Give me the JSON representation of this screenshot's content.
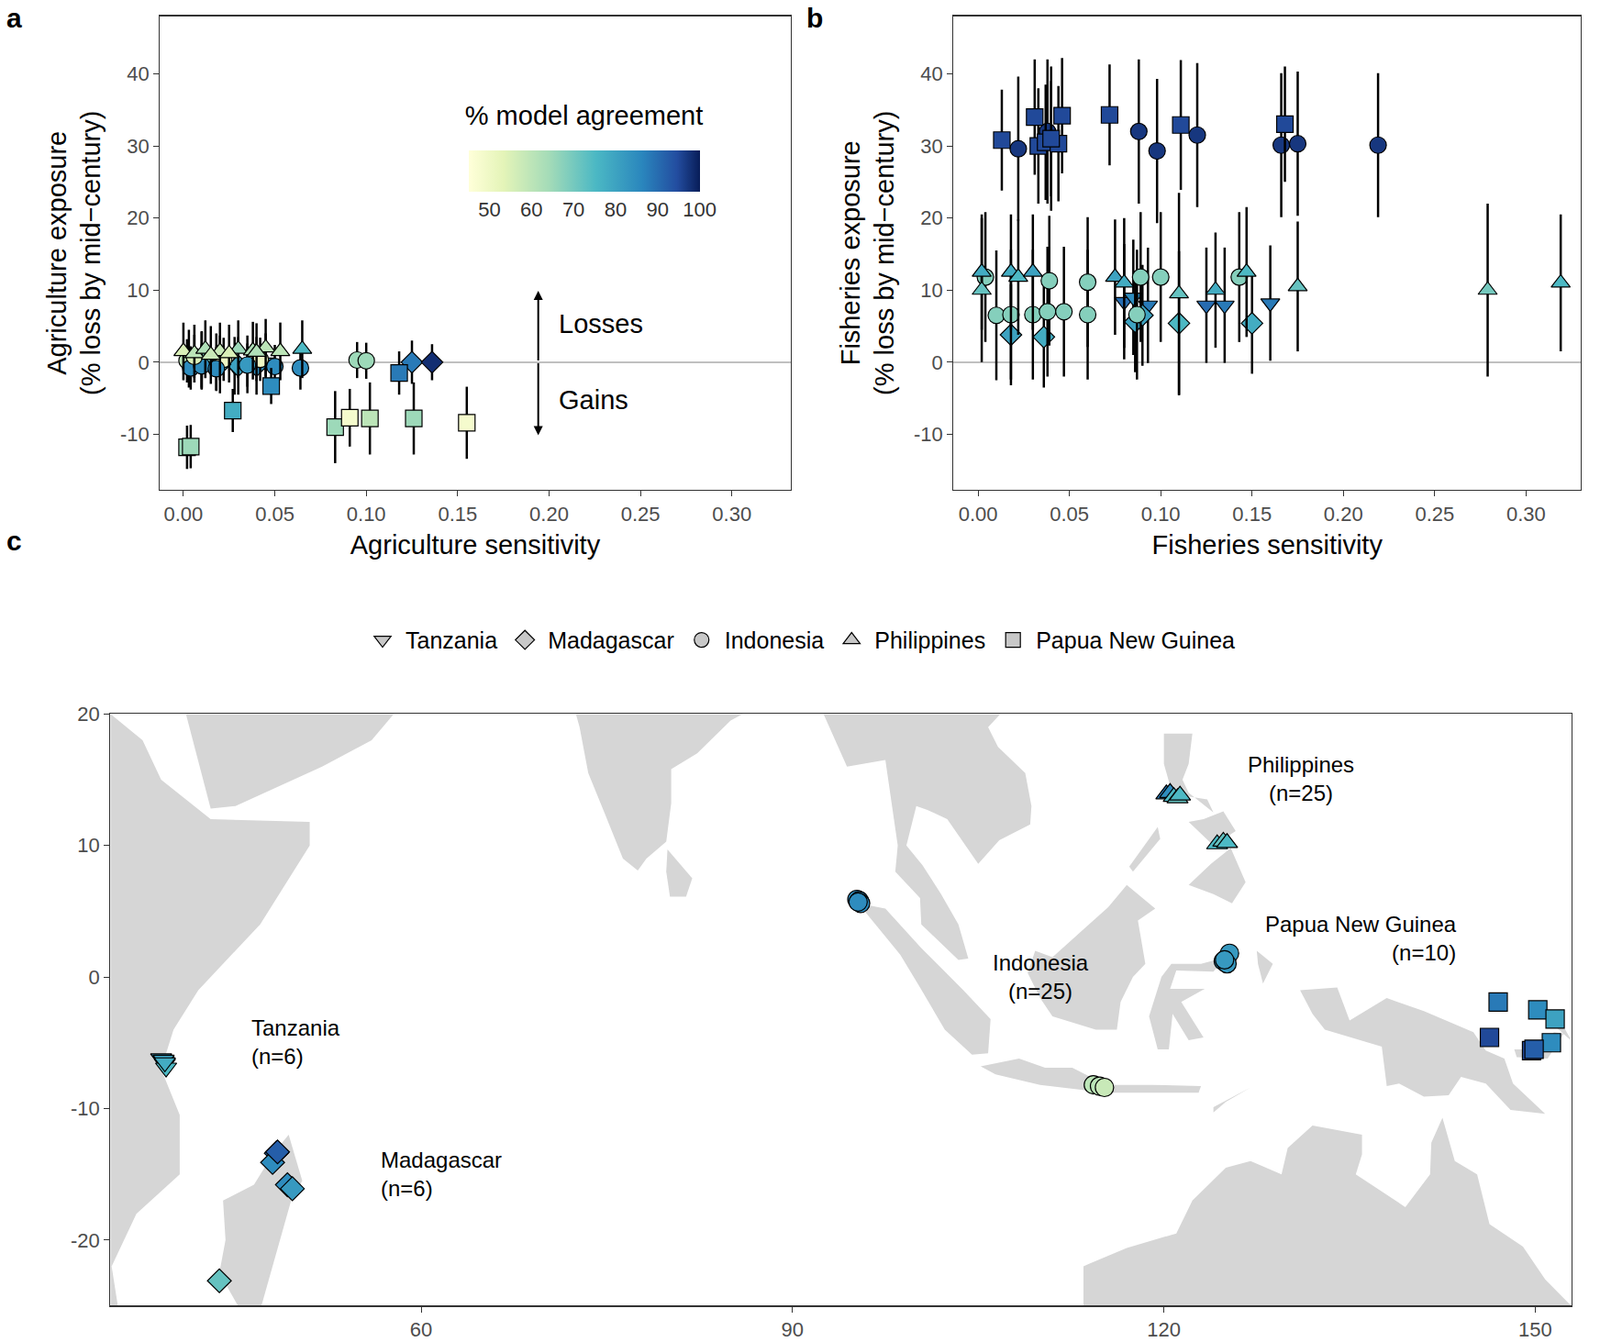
{
  "chart_data": [
    {
      "type": "scatter",
      "label": "a",
      "x_label": "Agriculture sensitivity",
      "y_label": "Agriculture exposure\n(% loss by mid−century)",
      "xlim": [
        -0.0128,
        0.332
      ],
      "xticks": [
        {
          "value": 0,
          "label": "0.00"
        },
        0.05,
        {
          "value": 0.1,
          "label": "0.10"
        },
        0.15,
        {
          "value": 0.2,
          "label": "0.20"
        },
        0.25,
        {
          "value": 0.3,
          "label": "0.30"
        }
      ],
      "ylim": [
        -17.7,
        48
      ],
      "yticks": [
        -10,
        0,
        10,
        20,
        30,
        40
      ],
      "grid": false,
      "annotations": [
        "Losses",
        "Gains"
      ],
      "colorbar": {
        "title": "% model agreement",
        "range": [
          45,
          100
        ],
        "ticks": [
          50,
          60,
          70,
          80,
          90,
          100
        ]
      },
      "series": [
        {
          "name": "Tanzania",
          "marker": "triangle-down",
          "x": [
            0.018,
            0.028,
            0.035,
            0.003,
            0.045,
            0.01
          ],
          "values": [
            0,
            -0.5,
            -0.3,
            0.5,
            0,
            0.2
          ],
          "error": [
            4,
            4,
            4,
            4,
            4,
            4
          ],
          "agreement": [
            80,
            85,
            75,
            55,
            82,
            60
          ]
        },
        {
          "name": "Madagascar",
          "marker": "diamond",
          "x": [
            0.125,
            0.136,
            0.03,
            0.02,
            0.01,
            0.04
          ],
          "values": [
            0,
            0,
            -0.5,
            -0.3,
            0.3,
            -0.5
          ],
          "error": [
            3,
            2.5,
            4,
            4,
            4,
            4
          ],
          "agreement": [
            88,
            98,
            80,
            75,
            70,
            85
          ]
        },
        {
          "name": "Indonesia",
          "marker": "circle",
          "x": [
            0.002,
            0.004,
            0.022,
            0.042,
            0.095,
            0.1,
            0.064,
            0.01,
            0.018,
            0.05,
            0.035,
            0.006
          ],
          "values": [
            0.2,
            -0.8,
            0.4,
            0.4,
            0.3,
            0.2,
            -0.8,
            -0.5,
            -0.9,
            -0.6,
            -0.4,
            0.8
          ],
          "error": [
            3,
            3,
            3,
            3,
            2.5,
            2.5,
            3,
            3,
            3,
            3,
            3,
            3
          ],
          "agreement": [
            60,
            85,
            50,
            50,
            65,
            65,
            85,
            85,
            85,
            85,
            82,
            55
          ]
        },
        {
          "name": "Philippines",
          "marker": "triangle-up",
          "x": [
            0.0,
            0.006,
            0.012,
            0.02,
            0.03,
            0.038,
            0.045,
            0.053,
            0.065,
            0.025,
            0.015,
            0.04
          ],
          "values": [
            1.5,
            1.2,
            1.8,
            1.5,
            1.8,
            1.6,
            2.0,
            1.5,
            1.8,
            1.2,
            1.0,
            1.4
          ],
          "error": [
            4,
            4,
            4,
            4,
            4,
            4,
            4,
            4,
            4,
            4,
            4,
            4
          ],
          "agreement": [
            55,
            60,
            62,
            58,
            65,
            62,
            60,
            60,
            75,
            55,
            58,
            62
          ]
        },
        {
          "name": "Papua New Guinea",
          "marker": "square",
          "x": [
            0.002,
            0.004,
            0.027,
            0.048,
            0.083,
            0.091,
            0.102,
            0.118,
            0.126,
            0.155
          ],
          "values": [
            -11.8,
            -11.7,
            -6.7,
            -3.3,
            -9.0,
            -7.7,
            -7.8,
            -1.5,
            -7.8,
            -8.4
          ],
          "error": [
            3,
            3,
            3,
            2.5,
            5,
            4,
            5,
            3,
            5,
            5
          ],
          "agreement": [
            65,
            65,
            78,
            85,
            65,
            48,
            60,
            88,
            65,
            48
          ]
        }
      ]
    },
    {
      "type": "scatter",
      "label": "b",
      "x_label": "Fisheries sensitivity",
      "y_label": "Fisheries exposure\n(% loss by mid−century)",
      "xlim": [
        -0.0134,
        0.33
      ],
      "xticks": [
        {
          "value": 0,
          "label": "0.00"
        },
        0.05,
        {
          "value": 0.1,
          "label": "0.10"
        },
        0.15,
        {
          "value": 0.2,
          "label": "0.20"
        },
        0.25,
        {
          "value": 0.3,
          "label": "0.30"
        }
      ],
      "ylim": [
        -17.7,
        48
      ],
      "yticks": [
        -10,
        0,
        10,
        20,
        30,
        40
      ],
      "grid": false,
      "series": [
        {
          "name": "Tanzania",
          "marker": "triangle-down",
          "x": [
            0.08,
            0.093,
            0.125,
            0.135,
            0.16,
            0.085
          ],
          "values": [
            8.4,
            7.9,
            7.9,
            7.9,
            8.2,
            9.0
          ],
          "error": [
            8,
            8,
            8,
            8,
            8,
            8
          ],
          "agreement": [
            90,
            88,
            90,
            88,
            88,
            85
          ]
        },
        {
          "name": "Madagascar",
          "marker": "diamond",
          "x": [
            0.018,
            0.036,
            0.086,
            0.11,
            0.15,
            0.09
          ],
          "values": [
            3.8,
            3.5,
            5.6,
            5.4,
            5.4,
            6.5
          ],
          "error": [
            7,
            7,
            7,
            10,
            7,
            7
          ],
          "agreement": [
            80,
            78,
            80,
            75,
            78,
            80
          ]
        },
        {
          "name": "Indonesia",
          "marker": "circle",
          "x": [
            0.022,
            0.038,
            0.04,
            0.088,
            0.098,
            0.12,
            0.166,
            0.175,
            0.219,
            0.004,
            0.01,
            0.018,
            0.03,
            0.039,
            0.038,
            0.047,
            0.06,
            0.06,
            0.087,
            0.089,
            0.1,
            0.143
          ],
          "values": [
            29.6,
            32,
            31,
            32,
            29.3,
            31.5,
            30.1,
            30.3,
            30.1,
            11.8,
            6.5,
            6.6,
            6.6,
            11.3,
            7,
            7,
            11.1,
            6.6,
            6.6,
            11.8,
            11.8,
            11.8
          ],
          "error": [
            10,
            10,
            10,
            10,
            10,
            10,
            10,
            10,
            10,
            9,
            9,
            9,
            9,
            9,
            9,
            9,
            9,
            9,
            9,
            9,
            9,
            9
          ],
          "agreement": [
            97,
            97,
            97,
            97,
            97,
            97,
            97,
            97,
            97,
            68,
            68,
            68,
            68,
            68,
            68,
            68,
            68,
            68,
            68,
            68,
            68,
            68
          ]
        },
        {
          "name": "Philippines",
          "marker": "triangle-up",
          "x": [
            0.002,
            0.002,
            0.018,
            0.022,
            0.03,
            0.075,
            0.08,
            0.11,
            0.13,
            0.147,
            0.175,
            0.279,
            0.319
          ],
          "values": [
            12.5,
            10,
            12.5,
            11.8,
            12.5,
            11.8,
            11,
            9.5,
            10,
            12.5,
            10.5,
            10,
            11
          ],
          "error": [
            8,
            10,
            8,
            8,
            8,
            8,
            9,
            14,
            8,
            9,
            9,
            12,
            9.5
          ],
          "agreement": [
            78,
            72,
            78,
            75,
            80,
            80,
            78,
            72,
            78,
            75,
            72,
            70,
            75
          ]
        },
        {
          "name": "Papua New Guinea",
          "marker": "square",
          "x": [
            0.013,
            0.031,
            0.033,
            0.037,
            0.044,
            0.046,
            0.072,
            0.111,
            0.168,
            0.04
          ],
          "values": [
            30.8,
            34,
            30,
            30.5,
            30.3,
            34.2,
            34.3,
            32.9,
            33,
            31
          ],
          "error": [
            7,
            8,
            8,
            8,
            8,
            8,
            7,
            9,
            8,
            8
          ],
          "agreement": [
            95,
            95,
            95,
            95,
            95,
            95,
            95,
            95,
            95,
            95
          ]
        }
      ]
    },
    {
      "type": "map",
      "label": "c",
      "xlim": [
        34.9,
        152.9
      ],
      "xticks": [
        60,
        90,
        120,
        150
      ],
      "ylim": [
        -25,
        20
      ],
      "yticks": [
        -20,
        -10,
        0,
        10,
        20
      ],
      "grid": false,
      "legend": "top",
      "series": [
        {
          "name": "Tanzania",
          "marker": "triangle-down",
          "color": "#c8c8c8",
          "annotation": "Tanzania\n(n=6)",
          "lon": [
            39.0,
            39.2,
            39.3,
            39.4,
            39.2,
            39.3
          ],
          "lat": [
            -6.2,
            -6.4,
            -6.6,
            -6.9,
            -6.3,
            -6.5
          ],
          "agreement": [
            80,
            75,
            78,
            75,
            80,
            78
          ]
        },
        {
          "name": "Madagascar",
          "marker": "diamond",
          "color": "#c8c8c8",
          "annotation": "Madagascar\n(n=6)",
          "lon": [
            48.3,
            48.0,
            49.2,
            49.6,
            43.7,
            48.4
          ],
          "lat": [
            -13.4,
            -14.1,
            -15.8,
            -16.1,
            -23.1,
            -13.3
          ],
          "agreement": [
            90,
            85,
            85,
            82,
            72,
            92
          ]
        },
        {
          "name": "Indonesia",
          "marker": "circle",
          "color": "#c8c8c8",
          "annotation": "Indonesia\n(n=25)",
          "lon": [
            95.2,
            95.4,
            95.5,
            95.3,
            124.8,
            125.3,
            125.1,
            124.9,
            114.3,
            114.8,
            115.2
          ],
          "lat": [
            5.9,
            5.8,
            5.6,
            5.7,
            1.2,
            1.8,
            1.0,
            1.3,
            -8.2,
            -8.3,
            -8.4
          ],
          "agreement": [
            85,
            85,
            85,
            85,
            82,
            82,
            82,
            82,
            60,
            60,
            58
          ]
        },
        {
          "name": "Philippines",
          "marker": "triangle-up",
          "color": "#c8c8c8",
          "annotation": "Philippines\n(n=25)",
          "lon": [
            120.2,
            120.5,
            120.8,
            121.1,
            121.3,
            124.3,
            124.8,
            125.1
          ],
          "lat": [
            13.9,
            14.0,
            13.7,
            13.6,
            13.8,
            10.1,
            10.3,
            10.2
          ],
          "agreement": [
            88,
            85,
            75,
            72,
            75,
            75,
            72,
            75
          ]
        },
        {
          "name": "Papua New Guinea",
          "marker": "square",
          "color": "#c8c8c8",
          "annotation": "Papua New Guinea\n(n=10)",
          "lon": [
            146.3,
            147.0,
            150.2,
            151.6,
            149.7,
            151.3,
            149.9
          ],
          "lat": [
            -4.6,
            -1.9,
            -2.5,
            -3.2,
            -5.6,
            -5.0,
            -5.5
          ],
          "agreement": [
            95,
            88,
            85,
            80,
            95,
            85,
            92
          ]
        }
      ]
    }
  ]
}
